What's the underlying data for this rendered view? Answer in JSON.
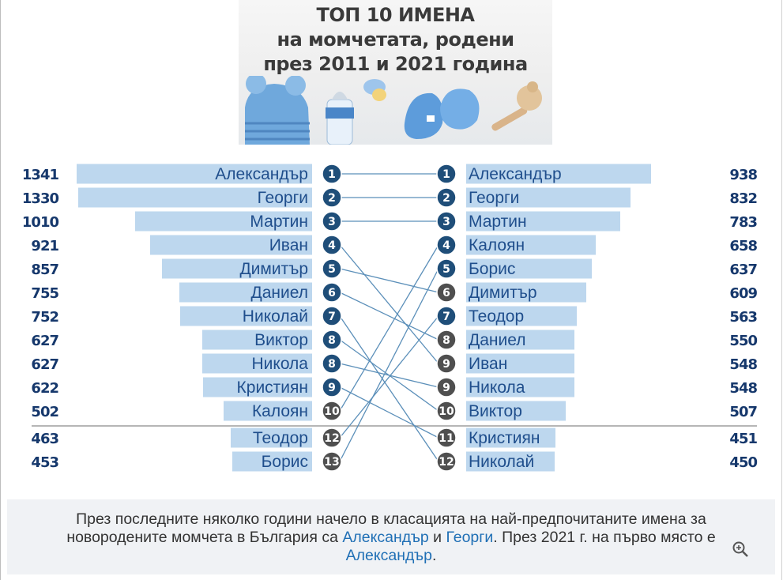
{
  "title": {
    "line1": "ТОП 10 ИМЕНА",
    "line2": "на момчетата, родени",
    "line3": "през 2011 и 2021 година"
  },
  "illustration_icons": [
    "knit-hat-icon",
    "baby-bottle-icon",
    "pacifier-icon",
    "baby-booties-icon",
    "rattle-icon"
  ],
  "colors": {
    "bar": "#bdd7ee",
    "count_text": "#16386c",
    "name_text": "#1f4e8c",
    "rank_blue": "#1f4e79",
    "rank_gray": "#4f4f4f",
    "connector": "#5b8fb9",
    "caption_bg": "#f0f2f5",
    "caption_link": "#1f6fb5"
  },
  "chart_data": {
    "type": "slope",
    "left": {
      "year": 2011,
      "rows": [
        {
          "rank": "1",
          "name": "Александър",
          "count": 1341,
          "top10": true
        },
        {
          "rank": "2",
          "name": "Георги",
          "count": 1330,
          "top10": true
        },
        {
          "rank": "3",
          "name": "Мартин",
          "count": 1010,
          "top10": true
        },
        {
          "rank": "4",
          "name": "Иван",
          "count": 921,
          "top10": true
        },
        {
          "rank": "5",
          "name": "Димитър",
          "count": 857,
          "top10": true
        },
        {
          "rank": "6",
          "name": "Даниел",
          "count": 755,
          "top10": true
        },
        {
          "rank": "7",
          "name": "Николай",
          "count": 752,
          "top10": true
        },
        {
          "rank": "8",
          "name": "Виктор",
          "count": 627,
          "top10": true
        },
        {
          "rank": "8",
          "name": "Никола",
          "count": 627,
          "top10": true
        },
        {
          "rank": "9",
          "name": "Кристиян",
          "count": 622,
          "top10": true
        },
        {
          "rank": "10",
          "name": "Калоян",
          "count": 502,
          "top10": false
        },
        {
          "rank": "12",
          "name": "Теодор",
          "count": 463,
          "top10": false
        },
        {
          "rank": "13",
          "name": "Борис",
          "count": 453,
          "top10": false
        }
      ]
    },
    "right": {
      "year": 2021,
      "rows": [
        {
          "rank": "1",
          "name": "Александър",
          "count": 938,
          "top10": true
        },
        {
          "rank": "2",
          "name": "Георги",
          "count": 832,
          "top10": true
        },
        {
          "rank": "3",
          "name": "Мартин",
          "count": 783,
          "top10": true
        },
        {
          "rank": "4",
          "name": "Калоян",
          "count": 658,
          "top10": true
        },
        {
          "rank": "5",
          "name": "Борис",
          "count": 637,
          "top10": true
        },
        {
          "rank": "6",
          "name": "Димитър",
          "count": 609,
          "top10": false
        },
        {
          "rank": "7",
          "name": "Теодор",
          "count": 563,
          "top10": true
        },
        {
          "rank": "8",
          "name": "Даниел",
          "count": 550,
          "top10": false
        },
        {
          "rank": "9",
          "name": "Иван",
          "count": 548,
          "top10": false
        },
        {
          "rank": "9",
          "name": "Никола",
          "count": 548,
          "top10": false
        },
        {
          "rank": "10",
          "name": "Виктор",
          "count": 507,
          "top10": false
        },
        {
          "rank": "11",
          "name": "Кристиян",
          "count": 451,
          "top10": false
        },
        {
          "rank": "12",
          "name": "Николай",
          "count": 450,
          "top10": false
        }
      ]
    },
    "connections": [
      [
        "Александър",
        "Александър"
      ],
      [
        "Георги",
        "Георги"
      ],
      [
        "Мартин",
        "Мартин"
      ],
      [
        "Иван",
        "Иван"
      ],
      [
        "Димитър",
        "Димитър"
      ],
      [
        "Даниел",
        "Даниел"
      ],
      [
        "Николай",
        "Николай"
      ],
      [
        "Виктор",
        "Виктор"
      ],
      [
        "Никола",
        "Никола"
      ],
      [
        "Кристиян",
        "Кристиян"
      ],
      [
        "Калоян",
        "Калоян"
      ],
      [
        "Теодор",
        "Теодор"
      ],
      [
        "Борис",
        "Борис"
      ]
    ]
  },
  "caption": {
    "part1": "През последните няколко години начело в класацията на най-предпочитаните имена за новородените момчета в България са ",
    "name1": "Александър",
    "part2": " и ",
    "name2": "Георги",
    "part3": ". През 2021 г. на първо място е ",
    "name3": "Александър",
    "part4": "."
  },
  "zoom_icon": "zoom-in-icon"
}
